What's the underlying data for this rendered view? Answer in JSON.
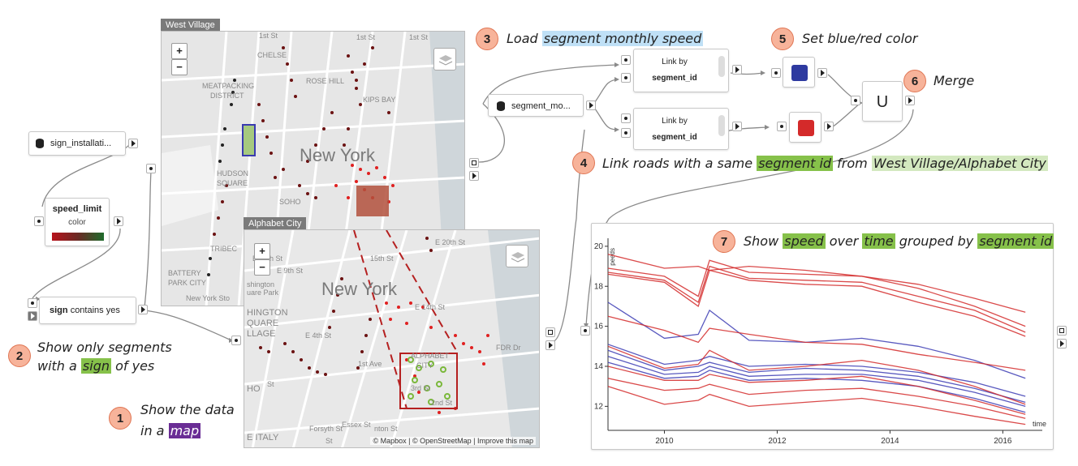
{
  "nodes": {
    "sign_installation": {
      "label": "sign_installati..."
    },
    "speed_limit": {
      "title": "speed_limit",
      "subtitle": "color"
    },
    "sign_filter": {
      "bold": "sign",
      "rest": "contains yes"
    },
    "segment_monthly": {
      "label": "segment_mo..."
    },
    "link1": {
      "title": "Link by",
      "field": "segment_id"
    },
    "link2": {
      "title": "Link by",
      "field": "segment_id"
    },
    "color_blue": {
      "color": "#2e3aa0"
    },
    "color_red": {
      "color": "#d42a2a"
    },
    "merge": {
      "symbol": "U"
    }
  },
  "maps": {
    "west_village": {
      "title": "West Village",
      "city_label": "New York",
      "zoom_in": "+",
      "zoom_out": "−",
      "streets": [
        "CHELSE",
        "ROSE HILL",
        "KIPS BAY",
        "MEATPACKING",
        "DISTRICT",
        "HUDSON",
        "SQUARE",
        "SOHO",
        "TRIBEC",
        "BATTERY",
        "PARK CITY",
        "New York Sto",
        "1st St",
        "1st St",
        "1st St",
        "E 12th St",
        "E 9th St",
        "shington",
        "uare Park",
        "HINGTON",
        "QUARE",
        "LLAGE",
        "HO",
        "E ITALY"
      ]
    },
    "alphabet_city": {
      "title": "Alphabet City",
      "city_label": "New York",
      "zoom_in": "+",
      "zoom_out": "−",
      "streets": [
        "E 20th St",
        "15th St",
        "E 14th St",
        "E 4th St",
        "1st Ave",
        "ALPHABET",
        "CITY",
        "2nd St",
        "3rd St",
        "FDR Dr",
        "Forsyth St",
        "Essex St",
        "nton St",
        "St",
        "St"
      ],
      "attribution": "© Mapbox | © OpenStreetMap | Improve this map"
    }
  },
  "steps": [
    {
      "num": "1",
      "pre": "Show the data",
      "line2_pre": "in a ",
      "hl": "map",
      "post": ""
    },
    {
      "num": "2",
      "pre": "Show only segments",
      "line2_pre": "with a ",
      "hl": "sign",
      "post": " of yes"
    },
    {
      "num": "3",
      "pre": "Load ",
      "hl": "segment monthly speed"
    },
    {
      "num": "4",
      "pre": "Link roads with a same ",
      "hl": "segment id",
      "mid": " from ",
      "hl2": "West Village/Alphabet City"
    },
    {
      "num": "5",
      "text": "Set blue/red color"
    },
    {
      "num": "6",
      "text": "Merge"
    },
    {
      "num": "7",
      "pre": "Show ",
      "hl1": "speed",
      "mid1": " over ",
      "hl2": "time",
      "mid2": " grouped by ",
      "hl3": "segment id"
    }
  ],
  "chart_data": {
    "type": "line",
    "xlabel": "time",
    "ylabel": "peeds",
    "xlim": [
      2009.0,
      2016.7
    ],
    "ylim": [
      10.8,
      20.4
    ],
    "x_ticks": [
      2010,
      2012,
      2014,
      2016
    ],
    "y_ticks": [
      12,
      14,
      16,
      18,
      20
    ],
    "series": [
      {
        "color": "#d42a2a",
        "x": [
          2009.0,
          2010.0,
          2010.6,
          2010.8,
          2011.5,
          2012.5,
          2013.5,
          2014.5,
          2015.5,
          2016.4
        ],
        "values": [
          19.6,
          18.9,
          19.0,
          18.8,
          19.0,
          18.8,
          18.5,
          18.1,
          17.4,
          16.7
        ]
      },
      {
        "color": "#d42a2a",
        "x": [
          2009.0,
          2010.0,
          2010.6,
          2010.8,
          2011.5,
          2012.5,
          2013.5,
          2014.5,
          2015.5,
          2016.4
        ],
        "values": [
          18.9,
          18.5,
          17.5,
          19.3,
          18.7,
          18.6,
          18.5,
          17.9,
          17.0,
          16.0
        ]
      },
      {
        "color": "#d42a2a",
        "x": [
          2009.0,
          2010.0,
          2010.6,
          2010.8,
          2011.5,
          2012.5,
          2013.5,
          2014.5,
          2015.5,
          2016.4
        ],
        "values": [
          18.7,
          18.3,
          17.2,
          19.0,
          18.4,
          18.3,
          18.2,
          17.5,
          16.8,
          15.7
        ]
      },
      {
        "color": "#d42a2a",
        "x": [
          2009.0,
          2010.0,
          2010.6,
          2010.8,
          2011.5,
          2012.5,
          2013.5,
          2014.5,
          2015.5,
          2016.4
        ],
        "values": [
          18.6,
          18.2,
          17.0,
          18.8,
          18.3,
          18.1,
          18.0,
          17.2,
          16.5,
          15.5
        ]
      },
      {
        "color": "#3c3cb4",
        "x": [
          2009.0,
          2010.0,
          2010.6,
          2010.8,
          2011.5,
          2012.5,
          2013.5,
          2014.5,
          2015.5,
          2016.4
        ],
        "values": [
          17.2,
          15.4,
          15.6,
          16.8,
          15.3,
          15.2,
          15.4,
          15.0,
          14.3,
          13.4
        ]
      },
      {
        "color": "#d42a2a",
        "x": [
          2009.0,
          2010.0,
          2010.6,
          2010.8,
          2011.5,
          2012.5,
          2013.5,
          2014.5,
          2015.5,
          2016.4
        ],
        "values": [
          16.5,
          15.8,
          15.2,
          15.9,
          15.6,
          15.2,
          15.1,
          14.6,
          14.2,
          13.8
        ]
      },
      {
        "color": "#3c3cb4",
        "x": [
          2009.0,
          2010.0,
          2010.6,
          2010.8,
          2011.5,
          2012.5,
          2013.5,
          2014.5,
          2015.5,
          2016.4
        ],
        "values": [
          15.1,
          14.1,
          14.3,
          14.5,
          14.0,
          14.1,
          14.0,
          13.7,
          13.2,
          12.5
        ]
      },
      {
        "color": "#3c3cb4",
        "x": [
          2009.0,
          2010.0,
          2010.6,
          2010.8,
          2011.5,
          2012.5,
          2013.5,
          2014.5,
          2015.5,
          2016.4
        ],
        "values": [
          14.8,
          13.8,
          14.0,
          14.2,
          13.7,
          13.9,
          13.8,
          13.5,
          12.9,
          12.2
        ]
      },
      {
        "color": "#3c3cb4",
        "x": [
          2009.0,
          2010.0,
          2010.6,
          2010.8,
          2011.5,
          2012.5,
          2013.5,
          2014.5,
          2015.5,
          2016.4
        ],
        "values": [
          14.5,
          13.6,
          13.7,
          14.0,
          13.5,
          13.6,
          13.6,
          13.3,
          12.7,
          12.0
        ]
      },
      {
        "color": "#3c3cb4",
        "x": [
          2009.0,
          2010.0,
          2010.6,
          2010.8,
          2011.5,
          2012.5,
          2013.5,
          2014.5,
          2015.5,
          2016.4
        ],
        "values": [
          14.2,
          13.4,
          13.5,
          13.8,
          13.3,
          13.4,
          13.3,
          13.0,
          12.4,
          11.7
        ]
      },
      {
        "color": "#d42a2a",
        "x": [
          2009.0,
          2010.0,
          2010.6,
          2010.8,
          2011.5,
          2012.5,
          2013.5,
          2014.5,
          2015.5,
          2016.4
        ],
        "values": [
          15.0,
          13.9,
          14.1,
          14.8,
          13.8,
          14.0,
          14.3,
          13.8,
          13.0,
          12.1
        ]
      },
      {
        "color": "#d42a2a",
        "x": [
          2009.0,
          2010.0,
          2010.6,
          2010.8,
          2011.5,
          2012.5,
          2013.5,
          2014.5,
          2015.5,
          2016.4
        ],
        "values": [
          14.0,
          13.3,
          13.3,
          13.6,
          13.2,
          13.3,
          13.5,
          13.0,
          12.3,
          11.6
        ]
      },
      {
        "color": "#d42a2a",
        "x": [
          2009.0,
          2010.0,
          2010.6,
          2010.8,
          2011.5,
          2012.5,
          2013.5,
          2014.5,
          2015.5,
          2016.4
        ],
        "values": [
          13.4,
          12.8,
          12.9,
          13.1,
          12.6,
          12.8,
          12.9,
          12.5,
          12.0,
          11.4
        ]
      },
      {
        "color": "#d42a2a",
        "x": [
          2009.0,
          2010.0,
          2010.6,
          2010.8,
          2011.5,
          2012.5,
          2013.5,
          2014.5,
          2015.5,
          2016.4
        ],
        "values": [
          13.0,
          12.1,
          12.3,
          12.6,
          12.0,
          12.2,
          12.4,
          12.0,
          11.5,
          11.1
        ]
      }
    ]
  }
}
